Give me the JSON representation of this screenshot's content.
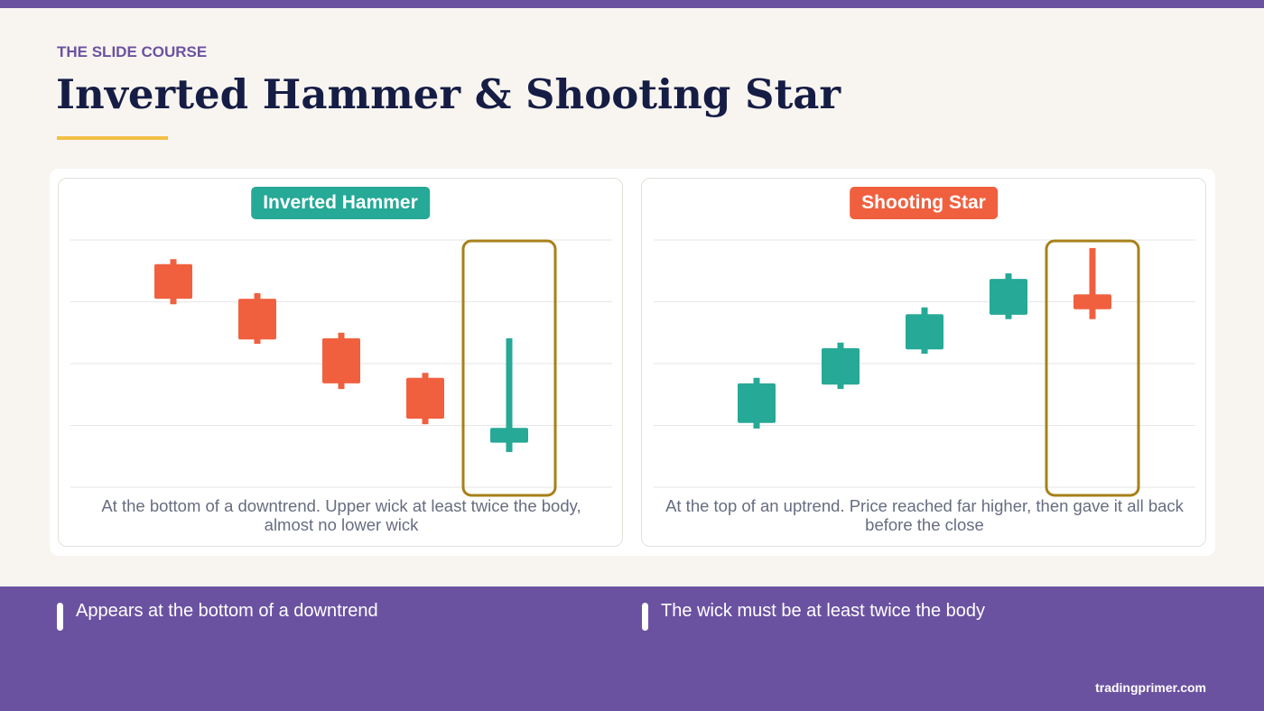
{
  "header": {
    "kicker": "THE SLIDE COURSE",
    "title": "Inverted Hammer & Shooting Star"
  },
  "panels": [
    {
      "label": "Inverted Hammer",
      "label_color": "#26a996",
      "caption": "At the bottom of a downtrend. Upper wick at least twice the body, almost no lower wick",
      "chart": {
        "type": "candlestick",
        "ylim": [
          0,
          4
        ],
        "yticks": [
          0,
          1,
          2,
          3,
          4
        ],
        "grid": true,
        "up_color": "#26a996",
        "down_color": "#f0603f",
        "open": [
          3.61,
          3.05,
          2.41,
          1.77,
          0.72
        ],
        "high": [
          3.69,
          3.14,
          2.5,
          1.85,
          2.41
        ],
        "low": [
          2.96,
          2.32,
          1.59,
          1.02,
          0.57
        ],
        "close": [
          3.05,
          2.39,
          1.68,
          1.11,
          0.96
        ]
      }
    },
    {
      "label": "Shooting Star",
      "label_color": "#f0603f",
      "caption": "At the top of an uptrend. Price reached far higher, then gave it all back before the close",
      "chart": {
        "type": "candlestick",
        "ylim": [
          0,
          4
        ],
        "yticks": [
          0,
          1,
          2,
          3,
          4
        ],
        "grid": true,
        "up_color": "#26a996",
        "down_color": "#f0603f",
        "open": [
          1.04,
          1.66,
          2.23,
          2.79,
          3.12
        ],
        "high": [
          1.77,
          2.34,
          2.91,
          3.46,
          3.87
        ],
        "low": [
          0.95,
          1.59,
          2.16,
          2.72,
          2.72
        ],
        "close": [
          1.68,
          2.25,
          2.8,
          3.37,
          2.88
        ]
      }
    }
  ],
  "bullets": [
    "Appears at the bottom of a downtrend",
    "The wick must be at least twice the body"
  ],
  "footer": "tradingprimer.com"
}
